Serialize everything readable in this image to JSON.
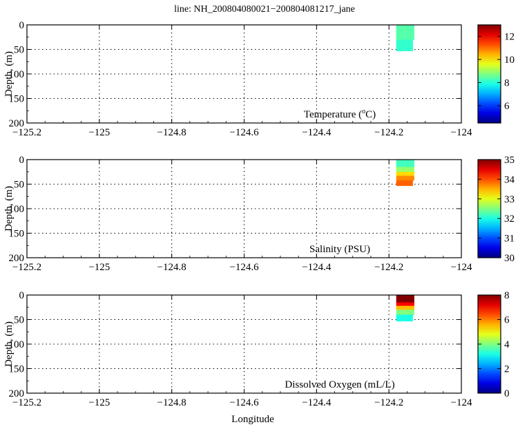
{
  "figure": {
    "title": "line: NH_200804080021−200804081217_jane",
    "xlabel": "Longitude",
    "ylabel": "Depth, (m)"
  },
  "chart_data": [
    {
      "type": "heatmap",
      "panel": "temperature",
      "annotation": "Temperature (oC)",
      "annotation_parts": [
        "Temperature (",
        "o",
        "C)"
      ],
      "xlabel": "",
      "ylabel": "Depth, (m)",
      "xlim": [
        -125.2,
        -124.0
      ],
      "ylim": [
        200,
        0
      ],
      "xticks": [
        -125.2,
        -125.0,
        -124.8,
        -124.6,
        -124.4,
        -124.2,
        -124.0
      ],
      "xtick_labels": [
        "−125.2",
        "−125",
        "−124.8",
        "−124.6",
        "−124.4",
        "−124.2",
        "−124"
      ],
      "yticks": [
        0,
        50,
        100,
        150,
        200
      ],
      "ytick_labels": [
        "0",
        "50",
        "100",
        "150",
        "200"
      ],
      "grid": true,
      "colorscale": "jet",
      "colorbar": {
        "range": [
          4.5,
          13
        ],
        "ticks": [
          6,
          8,
          10,
          12
        ],
        "tick_labels": [
          "6",
          "8",
          "10",
          "12"
        ]
      },
      "data_region": {
        "lon": [
          -124.18,
          -124.13
        ],
        "depth": [
          0,
          53
        ]
      },
      "layers": [
        {
          "depth": [
            0,
            30
          ],
          "value": 8.4
        },
        {
          "depth": [
            30,
            53
          ],
          "value": 8.1
        }
      ]
    },
    {
      "type": "heatmap",
      "panel": "salinity",
      "annotation": "Salinity (PSU)",
      "xlabel": "",
      "ylabel": "Depth, (m)",
      "xlim": [
        -125.2,
        -124.0
      ],
      "ylim": [
        200,
        0
      ],
      "xticks": [
        -125.2,
        -125.0,
        -124.8,
        -124.6,
        -124.4,
        -124.2,
        -124.0
      ],
      "xtick_labels": [
        "−125.2",
        "−125",
        "−124.8",
        "−124.6",
        "−124.4",
        "−124.2",
        "−124"
      ],
      "yticks": [
        0,
        50,
        100,
        150,
        200
      ],
      "ytick_labels": [
        "0",
        "50",
        "100",
        "150",
        "200"
      ],
      "grid": true,
      "colorscale": "jet",
      "colorbar": {
        "range": [
          30,
          35
        ],
        "ticks": [
          30,
          31,
          32,
          33,
          34,
          35
        ],
        "tick_labels": [
          "30",
          "31",
          "32",
          "33",
          "34",
          "35"
        ]
      },
      "data_region": {
        "lon": [
          -124.18,
          -124.13
        ],
        "depth": [
          0,
          53
        ]
      },
      "layers": [
        {
          "depth": [
            0,
            15
          ],
          "value": 32.2
        },
        {
          "depth": [
            15,
            25
          ],
          "value": 32.6
        },
        {
          "depth": [
            25,
            33
          ],
          "value": 33.3
        },
        {
          "depth": [
            33,
            42
          ],
          "value": 33.7
        },
        {
          "depth": [
            42,
            53
          ],
          "value": 33.9
        }
      ]
    },
    {
      "type": "heatmap",
      "panel": "oxygen",
      "annotation": "Dissolved Oxygen (mL/L)",
      "xlabel": "Longitude",
      "ylabel": "Depth, (m)",
      "xlim": [
        -125.2,
        -124.0
      ],
      "ylim": [
        200,
        0
      ],
      "xticks": [
        -125.2,
        -125.0,
        -124.8,
        -124.6,
        -124.4,
        -124.2,
        -124.0
      ],
      "xtick_labels": [
        "−125.2",
        "−125",
        "−124.8",
        "−124.6",
        "−124.4",
        "−124.2",
        "−124"
      ],
      "yticks": [
        0,
        50,
        100,
        150,
        200
      ],
      "ytick_labels": [
        "0",
        "50",
        "100",
        "150",
        "200"
      ],
      "grid": true,
      "colorscale": "jet",
      "colorbar": {
        "range": [
          0,
          8
        ],
        "ticks": [
          0,
          2,
          4,
          6,
          8
        ],
        "tick_labels": [
          "0",
          "2",
          "4",
          "6",
          "8"
        ]
      },
      "data_region": {
        "lon": [
          -124.18,
          -124.13
        ],
        "depth": [
          0,
          53
        ]
      },
      "layers": [
        {
          "depth": [
            0,
            15
          ],
          "value": 8.0
        },
        {
          "depth": [
            15,
            22
          ],
          "value": 7.0
        },
        {
          "depth": [
            22,
            30
          ],
          "value": 5.5
        },
        {
          "depth": [
            30,
            40
          ],
          "value": 4.0
        },
        {
          "depth": [
            40,
            53
          ],
          "value": 3.2
        }
      ]
    }
  ]
}
